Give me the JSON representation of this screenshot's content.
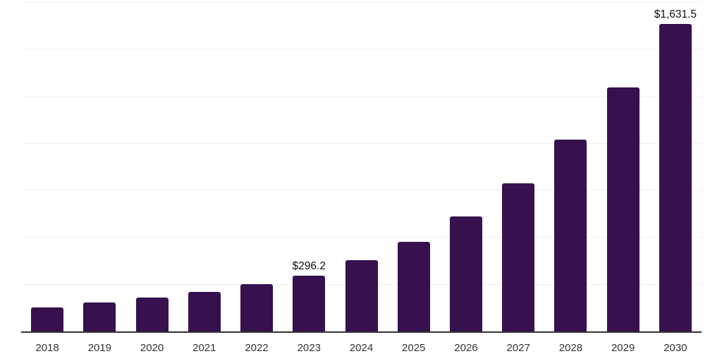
{
  "chart_data": {
    "type": "bar",
    "title": "",
    "xlabel": "",
    "ylabel": "",
    "categories": [
      "2018",
      "2019",
      "2020",
      "2021",
      "2022",
      "2023",
      "2024",
      "2025",
      "2026",
      "2027",
      "2028",
      "2029",
      "2030"
    ],
    "values": [
      129,
      153,
      178,
      208,
      249,
      296.2,
      377,
      474,
      610,
      786,
      1016,
      1292,
      1631.5
    ],
    "value_labels": {
      "2023": "$296.2",
      "2030": "$1,631.5"
    },
    "ylim": [
      0,
      1750
    ],
    "gridline_step": 250,
    "grid": "horizontal-only",
    "legend": "none",
    "y_axis_tick_labels": "none",
    "colors": {
      "bar": "#36114E",
      "axis_line": "#333333",
      "gridline": "#f0f0f0",
      "tick_label": "#333333",
      "value_label": "#111111",
      "background": "#ffffff"
    }
  }
}
